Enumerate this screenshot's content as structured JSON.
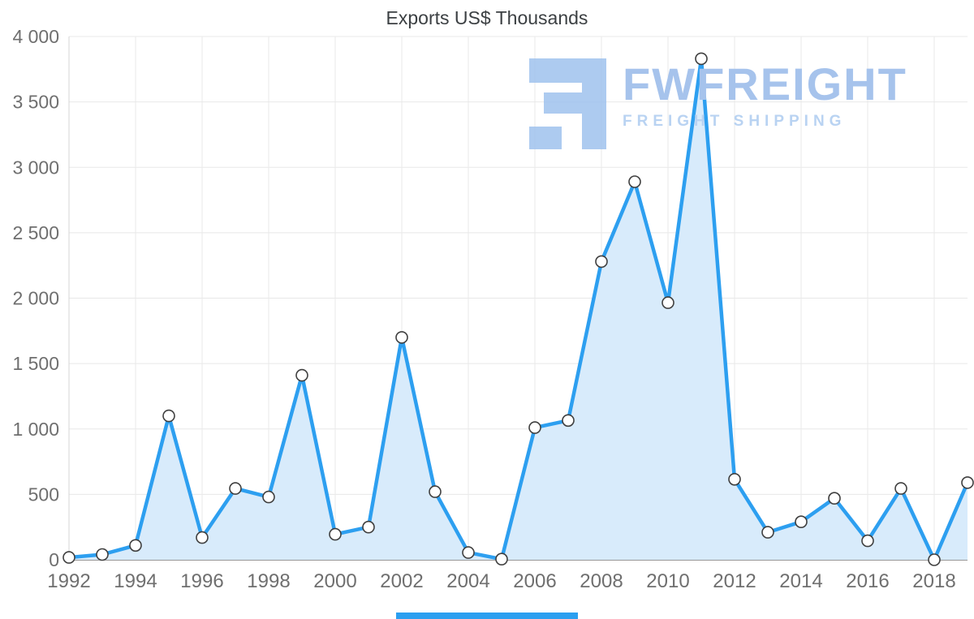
{
  "chart_data": {
    "type": "area",
    "title": "Exports US$ Thousands",
    "x": [
      1992,
      1993,
      1994,
      1995,
      1996,
      1997,
      1998,
      1999,
      2000,
      2001,
      2002,
      2003,
      2004,
      2005,
      2006,
      2007,
      2008,
      2009,
      2010,
      2011,
      2012,
      2013,
      2014,
      2015,
      2016,
      2017,
      2018,
      2019
    ],
    "values": [
      18,
      40,
      110,
      1100,
      170,
      545,
      480,
      1410,
      195,
      250,
      1700,
      520,
      55,
      5,
      1010,
      1065,
      2280,
      2890,
      1965,
      3830,
      615,
      210,
      290,
      470,
      145,
      545,
      0,
      590
    ],
    "ylim": [
      0,
      4000
    ],
    "ytick_step": 500,
    "ytick_labels": [
      "0",
      "500",
      "1 000",
      "1 500",
      "2 000",
      "2 500",
      "3 000",
      "3 500",
      "4 000"
    ],
    "xtick_labels": [
      "1992",
      "1994",
      "1996",
      "1998",
      "2000",
      "2002",
      "2004",
      "2006",
      "2008",
      "2010",
      "2012",
      "2014",
      "2016",
      "2018"
    ],
    "grid": true,
    "legend": "none",
    "xlabel": "",
    "ylabel": "",
    "line_color": "#2d9ff0",
    "fill_color": "#d8ebfb",
    "marker_fill": "#ffffff",
    "marker_stroke": "#3f3f3f",
    "axis_label_color": "#6f6f6f",
    "title_color": "#3c4043"
  },
  "watermark": {
    "brand": "FWFREIGHT",
    "subtitle": "FREIGHT SHIPPING",
    "color": "#a6c3ec"
  }
}
